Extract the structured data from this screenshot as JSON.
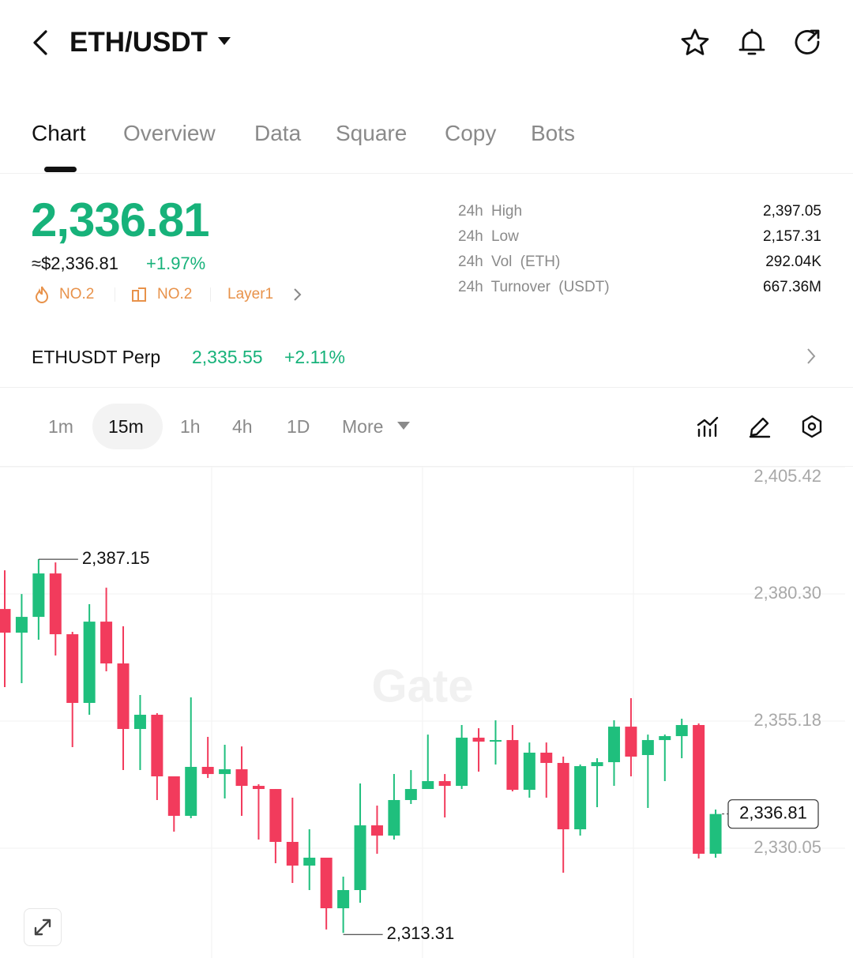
{
  "header": {
    "title": "ETH/USDT"
  },
  "tabs": [
    "Chart",
    "Overview",
    "Data",
    "Square",
    "Copy",
    "Bots"
  ],
  "ticker": {
    "price": "2,336.81",
    "usd_price": "≈$2,336.81",
    "change": "+1.97%",
    "badges": [
      "NO.2",
      "NO.2",
      "Layer1"
    ]
  },
  "stats": [
    {
      "label": "24h High",
      "value": "2,397.05"
    },
    {
      "label": "24h Low",
      "value": "2,157.31"
    },
    {
      "label": "24h Vol (ETH)",
      "value": "292.04K"
    },
    {
      "label": "24h Turnover (USDT)",
      "value": "667.36M"
    }
  ],
  "perp": {
    "name": "ETHUSDT Perp",
    "price": "2,335.55",
    "change": "+2.11%"
  },
  "intervals": [
    "1m",
    "15m",
    "1h",
    "4h",
    "1D",
    "More"
  ],
  "watermark": "Gate",
  "chart_data": {
    "type": "candlestick",
    "up_color": "#1fbf7d",
    "down_color": "#f23b5c",
    "ylim": [
      2308.36,
      2405.42
    ],
    "yticks": [
      {
        "value": 2405.42,
        "label": "2,405.42"
      },
      {
        "value": 2380.3,
        "label": "2,380.30"
      },
      {
        "value": 2355.18,
        "label": "2,355.18"
      },
      {
        "value": 2330.05,
        "label": "2,330.05"
      }
    ],
    "grid": true,
    "open": [
      2377.32,
      2372.64,
      2375.76,
      2384.34,
      2372.33,
      2358.76,
      2374.82,
      2366.56,
      2353.61,
      2356.42,
      2344.25,
      2336.45,
      2346.12,
      2344.71,
      2345.65,
      2342.37,
      2341.75,
      2331.3,
      2326.62,
      2328.18,
      2318.19,
      2321.78,
      2334.57,
      2332.55,
      2339.57,
      2341.75,
      2343.31,
      2342.37,
      2351.89,
      2351.11,
      2351.42,
      2341.59,
      2348.93,
      2346.9,
      2333.79,
      2346.27,
      2347.05,
      2354.07,
      2348.46,
      2351.42,
      2352.2,
      2354.39,
      2328.96
    ],
    "high": [
      2384.96,
      2380.28,
      2387.15,
      2386.52,
      2372.8,
      2378.26,
      2381.53,
      2373.89,
      2360.32,
      2356.73,
      2344.25,
      2359.85,
      2352.05,
      2350.49,
      2350.17,
      2342.69,
      2341.75,
      2340.03,
      2333.79,
      2328.18,
      2324.43,
      2342.84,
      2338.47,
      2344.71,
      2345.49,
      2352.51,
      2344.71,
      2354.39,
      2353.76,
      2355.32,
      2354.39,
      2350.95,
      2350.95,
      2348.15,
      2346.59,
      2347.83,
      2355.32,
      2359.69,
      2352.51,
      2352.51,
      2355.64,
      2354.7,
      2337.69
    ],
    "low": [
      2361.88,
      2362.66,
      2371.24,
      2368.12,
      2350.02,
      2356.42,
      2365.0,
      2345.49,
      2345.49,
      2339.57,
      2333.33,
      2335.98,
      2343.93,
      2339.88,
      2336.45,
      2331.77,
      2327.09,
      2323.19,
      2321.78,
      2314.0,
      2313.31,
      2319.29,
      2328.96,
      2331.77,
      2338.79,
      2341.75,
      2336.13,
      2341.75,
      2345.18,
      2346.59,
      2341.28,
      2340.03,
      2340.03,
      2325.21,
      2332.55,
      2338.16,
      2342.37,
      2344.25,
      2338.01,
      2343.31,
      2347.83,
      2328.02,
      2328.18
    ],
    "close": [
      2372.64,
      2375.76,
      2384.34,
      2372.33,
      2358.76,
      2374.82,
      2366.56,
      2353.61,
      2356.42,
      2344.25,
      2336.45,
      2346.12,
      2344.71,
      2345.65,
      2342.37,
      2341.75,
      2331.3,
      2326.62,
      2328.18,
      2318.19,
      2321.78,
      2334.57,
      2332.55,
      2339.57,
      2341.75,
      2343.31,
      2342.37,
      2351.89,
      2351.11,
      2351.42,
      2341.59,
      2348.93,
      2346.9,
      2333.79,
      2346.27,
      2347.05,
      2354.07,
      2348.15,
      2351.42,
      2352.2,
      2354.39,
      2328.96,
      2336.81
    ],
    "high_label": {
      "value": 2387.15,
      "label": "2,387.15"
    },
    "low_label": {
      "value": 2313.31,
      "label": "2,313.31"
    },
    "last_label": {
      "value": 2336.81,
      "label": "2,336.81"
    }
  }
}
